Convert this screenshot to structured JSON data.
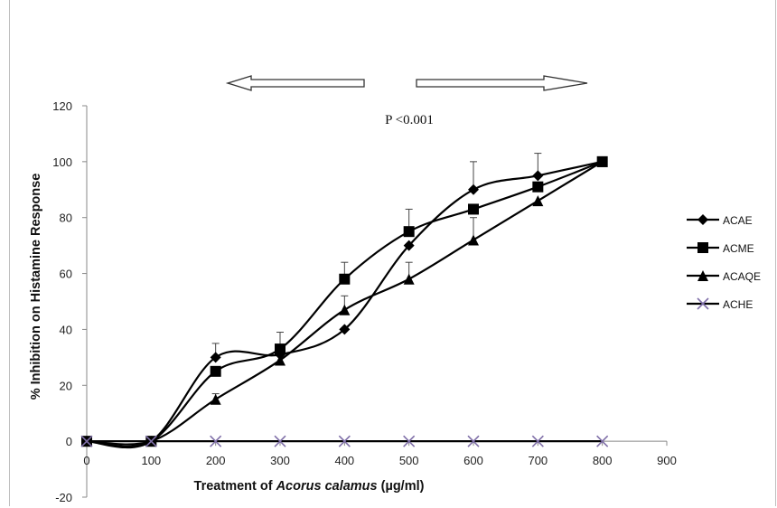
{
  "chart_data": {
    "type": "line",
    "xlabel_prefix": "Treatment of ",
    "xlabel_italic": "Acorus calamus",
    "xlabel_suffix": " (µg/ml)",
    "ylabel": "% Inhibition on Histamine Response",
    "xlim": [
      0,
      900
    ],
    "ylim": [
      -20,
      120
    ],
    "x_ticks": [
      0,
      100,
      200,
      300,
      400,
      500,
      600,
      700,
      800,
      900
    ],
    "y_ticks": [
      -20,
      0,
      20,
      40,
      60,
      80,
      100,
      120
    ],
    "annotation": "P <0.001",
    "legend_position": "right",
    "grid": false,
    "x": [
      0,
      100,
      200,
      300,
      400,
      500,
      600,
      700,
      800
    ],
    "series": [
      {
        "name": "ACAE",
        "marker": "diamond",
        "color": "#000000",
        "values": [
          0,
          0,
          30,
          31,
          40,
          70,
          90,
          95,
          100
        ],
        "errors": [
          0,
          0,
          5,
          0,
          0,
          0,
          10,
          8,
          0
        ]
      },
      {
        "name": "ACME",
        "marker": "square",
        "color": "#000000",
        "values": [
          0,
          0,
          25,
          33,
          58,
          75,
          83,
          91,
          100
        ],
        "errors": [
          0,
          0,
          0,
          6,
          6,
          8,
          0,
          0,
          0
        ]
      },
      {
        "name": "ACAQE",
        "marker": "triangle",
        "color": "#000000",
        "values": [
          0,
          0,
          15,
          29,
          47,
          58,
          72,
          86,
          100
        ],
        "errors": [
          0,
          0,
          2,
          0,
          5,
          6,
          8,
          0,
          0
        ]
      },
      {
        "name": "ACHE",
        "marker": "x",
        "color": "#7f6fa8",
        "values": [
          0,
          0,
          0,
          0,
          0,
          0,
          0,
          0,
          0
        ],
        "errors": [
          0,
          0,
          0,
          0,
          0,
          0,
          0,
          0,
          0
        ]
      }
    ]
  }
}
